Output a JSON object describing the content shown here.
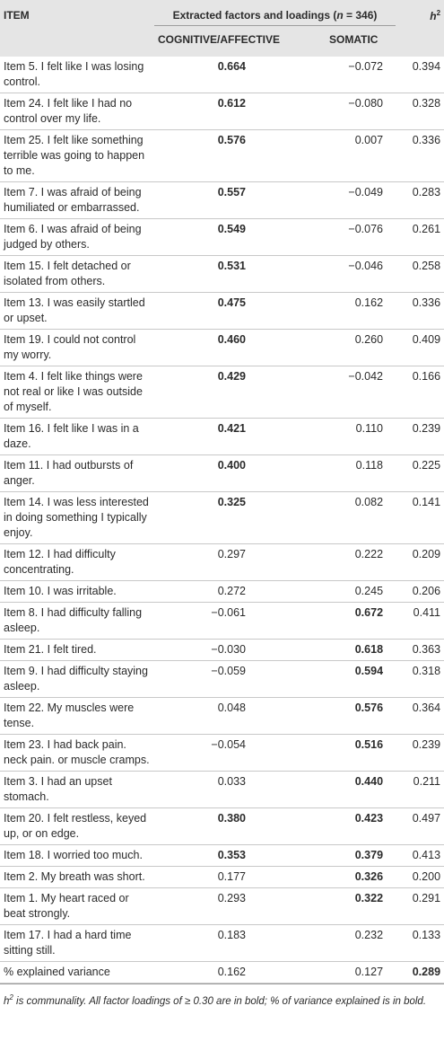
{
  "header": {
    "item": "ITEM",
    "extracted_pre": "Extracted factors and loadings (",
    "n_var": "n",
    "extracted_post": " = 346)",
    "h_base": "h",
    "h_sup": "2",
    "cognitive": "COGNITIVE/AFFECTIVE",
    "somatic": "SOMATIC"
  },
  "rows": [
    {
      "item": "Item 5. I felt like I was losing control.",
      "cog": "0.664",
      "som": "−0.072",
      "h2": "0.394",
      "cog_bold": true,
      "som_bold": false
    },
    {
      "item": "Item 24. I felt like I had no control over my life.",
      "cog": "0.612",
      "som": "−0.080",
      "h2": "0.328",
      "cog_bold": true,
      "som_bold": false
    },
    {
      "item": "Item 25. I felt like something terrible was going to happen to me.",
      "cog": "0.576",
      "som": "0.007",
      "h2": "0.336",
      "cog_bold": true,
      "som_bold": false
    },
    {
      "item": "Item 7. I was afraid of being humiliated or embarrassed.",
      "cog": "0.557",
      "som": "−0.049",
      "h2": "0.283",
      "cog_bold": true,
      "som_bold": false
    },
    {
      "item": "Item 6. I was afraid of being judged by others.",
      "cog": "0.549",
      "som": "−0.076",
      "h2": "0.261",
      "cog_bold": true,
      "som_bold": false
    },
    {
      "item": "Item 15. I felt detached or isolated from others.",
      "cog": "0.531",
      "som": "−0.046",
      "h2": "0.258",
      "cog_bold": true,
      "som_bold": false
    },
    {
      "item": "Item 13. I was easily startled or upset.",
      "cog": "0.475",
      "som": "0.162",
      "h2": "0.336",
      "cog_bold": true,
      "som_bold": false
    },
    {
      "item": "Item 19. I could not control my worry.",
      "cog": "0.460",
      "som": "0.260",
      "h2": "0.409",
      "cog_bold": true,
      "som_bold": false
    },
    {
      "item": "Item 4. I felt like things were not real or like I was outside of myself.",
      "cog": "0.429",
      "som": "−0.042",
      "h2": "0.166",
      "cog_bold": true,
      "som_bold": false
    },
    {
      "item": "Item 16. I felt like I was in a daze.",
      "cog": "0.421",
      "som": "0.110",
      "h2": "0.239",
      "cog_bold": true,
      "som_bold": false
    },
    {
      "item": "Item 11. I had outbursts of anger.",
      "cog": "0.400",
      "som": "0.118",
      "h2": "0.225",
      "cog_bold": true,
      "som_bold": false
    },
    {
      "item": "Item 14. I was less interested in doing something I typically enjoy.",
      "cog": "0.325",
      "som": "0.082",
      "h2": "0.141",
      "cog_bold": true,
      "som_bold": false
    },
    {
      "item": "Item 12. I had difficulty concentrating.",
      "cog": "0.297",
      "som": "0.222",
      "h2": "0.209",
      "cog_bold": false,
      "som_bold": false
    },
    {
      "item": "Item 10. I was irritable.",
      "cog": "0.272",
      "som": "0.245",
      "h2": "0.206",
      "cog_bold": false,
      "som_bold": false
    },
    {
      "item": "Item 8. I had difficulty falling asleep.",
      "cog": "−0.061",
      "som": "0.672",
      "h2": "0.411",
      "cog_bold": false,
      "som_bold": true
    },
    {
      "item": "Item 21. I felt tired.",
      "cog": "−0.030",
      "som": "0.618",
      "h2": "0.363",
      "cog_bold": false,
      "som_bold": true
    },
    {
      "item": "Item 9. I had difficulty staying asleep.",
      "cog": "−0.059",
      "som": "0.594",
      "h2": "0.318",
      "cog_bold": false,
      "som_bold": true
    },
    {
      "item": "Item 22. My muscles were tense.",
      "cog": "0.048",
      "som": "0.576",
      "h2": "0.364",
      "cog_bold": false,
      "som_bold": true
    },
    {
      "item": "Item 23. I had back pain. neck pain. or muscle cramps.",
      "cog": "−0.054",
      "som": "0.516",
      "h2": "0.239",
      "cog_bold": false,
      "som_bold": true
    },
    {
      "item": "Item 3. I had an upset stomach.",
      "cog": "0.033",
      "som": "0.440",
      "h2": "0.211",
      "cog_bold": false,
      "som_bold": true
    },
    {
      "item": "Item 20. I felt restless, keyed up, or on edge.",
      "cog": "0.380",
      "som": "0.423",
      "h2": "0.497",
      "cog_bold": true,
      "som_bold": true
    },
    {
      "item": "Item 18. I worried too much.",
      "cog": "0.353",
      "som": "0.379",
      "h2": "0.413",
      "cog_bold": true,
      "som_bold": true
    },
    {
      "item": "Item 2. My breath was short.",
      "cog": "0.177",
      "som": "0.326",
      "h2": "0.200",
      "cog_bold": false,
      "som_bold": true
    },
    {
      "item": "Item 1. My heart raced or beat strongly.",
      "cog": "0.293",
      "som": "0.322",
      "h2": "0.291",
      "cog_bold": false,
      "som_bold": true
    },
    {
      "item": "Item 17. I had a hard time sitting still.",
      "cog": "0.183",
      "som": "0.232",
      "h2": "0.133",
      "cog_bold": false,
      "som_bold": false
    },
    {
      "item": "% explained variance",
      "cog": "0.162",
      "som": "0.127",
      "h2": "0.289",
      "cog_bold": false,
      "som_bold": false,
      "h2_bold": true
    }
  ],
  "footnote": {
    "h_base": "h",
    "h_sup": "2",
    "text": " is communality. All factor loadings of ≥ 0.30 are in bold; % of variance explained is in bold."
  }
}
